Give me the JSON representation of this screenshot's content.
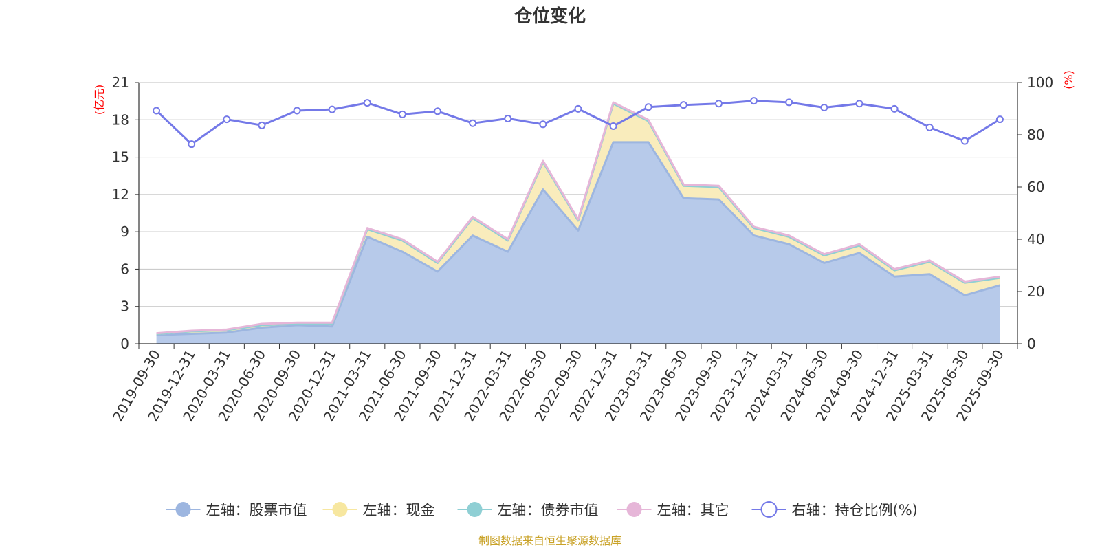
{
  "chart_data": {
    "type": "area",
    "title": "仓位变化",
    "left_unit": "(亿元)",
    "right_unit": "(%)",
    "categories": [
      "2019-09-30",
      "2019-12-31",
      "2020-03-31",
      "2020-06-30",
      "2020-09-30",
      "2020-12-31",
      "2021-03-31",
      "2021-06-30",
      "2021-09-30",
      "2021-12-31",
      "2022-03-31",
      "2022-06-30",
      "2022-09-30",
      "2022-12-31",
      "2023-03-31",
      "2023-06-30",
      "2023-09-30",
      "2023-12-31",
      "2024-03-31",
      "2024-06-30",
      "2024-09-30",
      "2024-12-31",
      "2025-03-31",
      "2025-06-30",
      "2025-09-30"
    ],
    "left_axis": {
      "min": 0,
      "max": 21,
      "ticks": [
        0,
        3,
        6,
        9,
        12,
        15,
        18,
        21
      ]
    },
    "right_axis": {
      "min": 0,
      "max": 100,
      "ticks": [
        0,
        20,
        40,
        60,
        80,
        100
      ]
    },
    "series": [
      {
        "name": "左轴：股票市值",
        "axis": "left",
        "type": "stacked-area",
        "color": "#9db6e0",
        "fill": "#b7caea",
        "values": [
          0.7,
          0.8,
          0.9,
          1.3,
          1.5,
          1.4,
          8.6,
          7.4,
          5.8,
          8.7,
          7.4,
          12.4,
          9.1,
          16.2,
          16.2,
          11.7,
          11.6,
          8.7,
          8.0,
          6.5,
          7.3,
          5.4,
          5.6,
          3.9,
          4.7
        ]
      },
      {
        "name": "左轴：现金",
        "axis": "left",
        "type": "stacked-area",
        "color": "#f7e7a0",
        "fill": "#f9ecbc",
        "values": [
          0.1,
          0.2,
          0.2,
          0.2,
          0.1,
          0.2,
          0.6,
          0.9,
          0.7,
          1.4,
          0.9,
          2.2,
          0.8,
          3.1,
          1.7,
          1.0,
          1.0,
          0.6,
          0.6,
          0.6,
          0.6,
          0.5,
          1.0,
          1.0,
          0.6
        ]
      },
      {
        "name": "左轴：债券市值",
        "axis": "left",
        "type": "stacked-area",
        "color": "#8fcfd4",
        "fill": "#a8dade",
        "values": [
          0,
          0,
          0,
          0,
          0,
          0,
          0,
          0,
          0,
          0,
          0,
          0,
          0,
          0,
          0,
          0,
          0,
          0,
          0,
          0,
          0,
          0,
          0,
          0,
          0
        ]
      },
      {
        "name": "左轴：其它",
        "axis": "left",
        "type": "stacked-area",
        "color": "#e6b6d8",
        "fill": "#efcce4",
        "values": [
          0.05,
          0.05,
          0.05,
          0.1,
          0.1,
          0.1,
          0.1,
          0.1,
          0.1,
          0.1,
          0.1,
          0.1,
          0.1,
          0.1,
          0.1,
          0.1,
          0.1,
          0.1,
          0.1,
          0.1,
          0.1,
          0.1,
          0.1,
          0.1,
          0.1
        ]
      },
      {
        "name": "右轴：持仓比例(%)",
        "axis": "right",
        "type": "line",
        "color": "#7479e8",
        "values": [
          89.2,
          76.4,
          85.9,
          83.6,
          89.2,
          89.7,
          92.2,
          87.8,
          89.0,
          84.4,
          86.2,
          84.0,
          89.9,
          83.3,
          90.6,
          91.4,
          91.9,
          93.0,
          92.4,
          90.4,
          91.9,
          89.9,
          82.8,
          77.6,
          85.9
        ]
      }
    ],
    "legend": {
      "position": "bottom",
      "markers": [
        "filled-circle",
        "filled-circle",
        "filled-circle",
        "filled-circle",
        "hollow-circle"
      ]
    },
    "source": "制图数据来自恒生聚源数据库"
  }
}
